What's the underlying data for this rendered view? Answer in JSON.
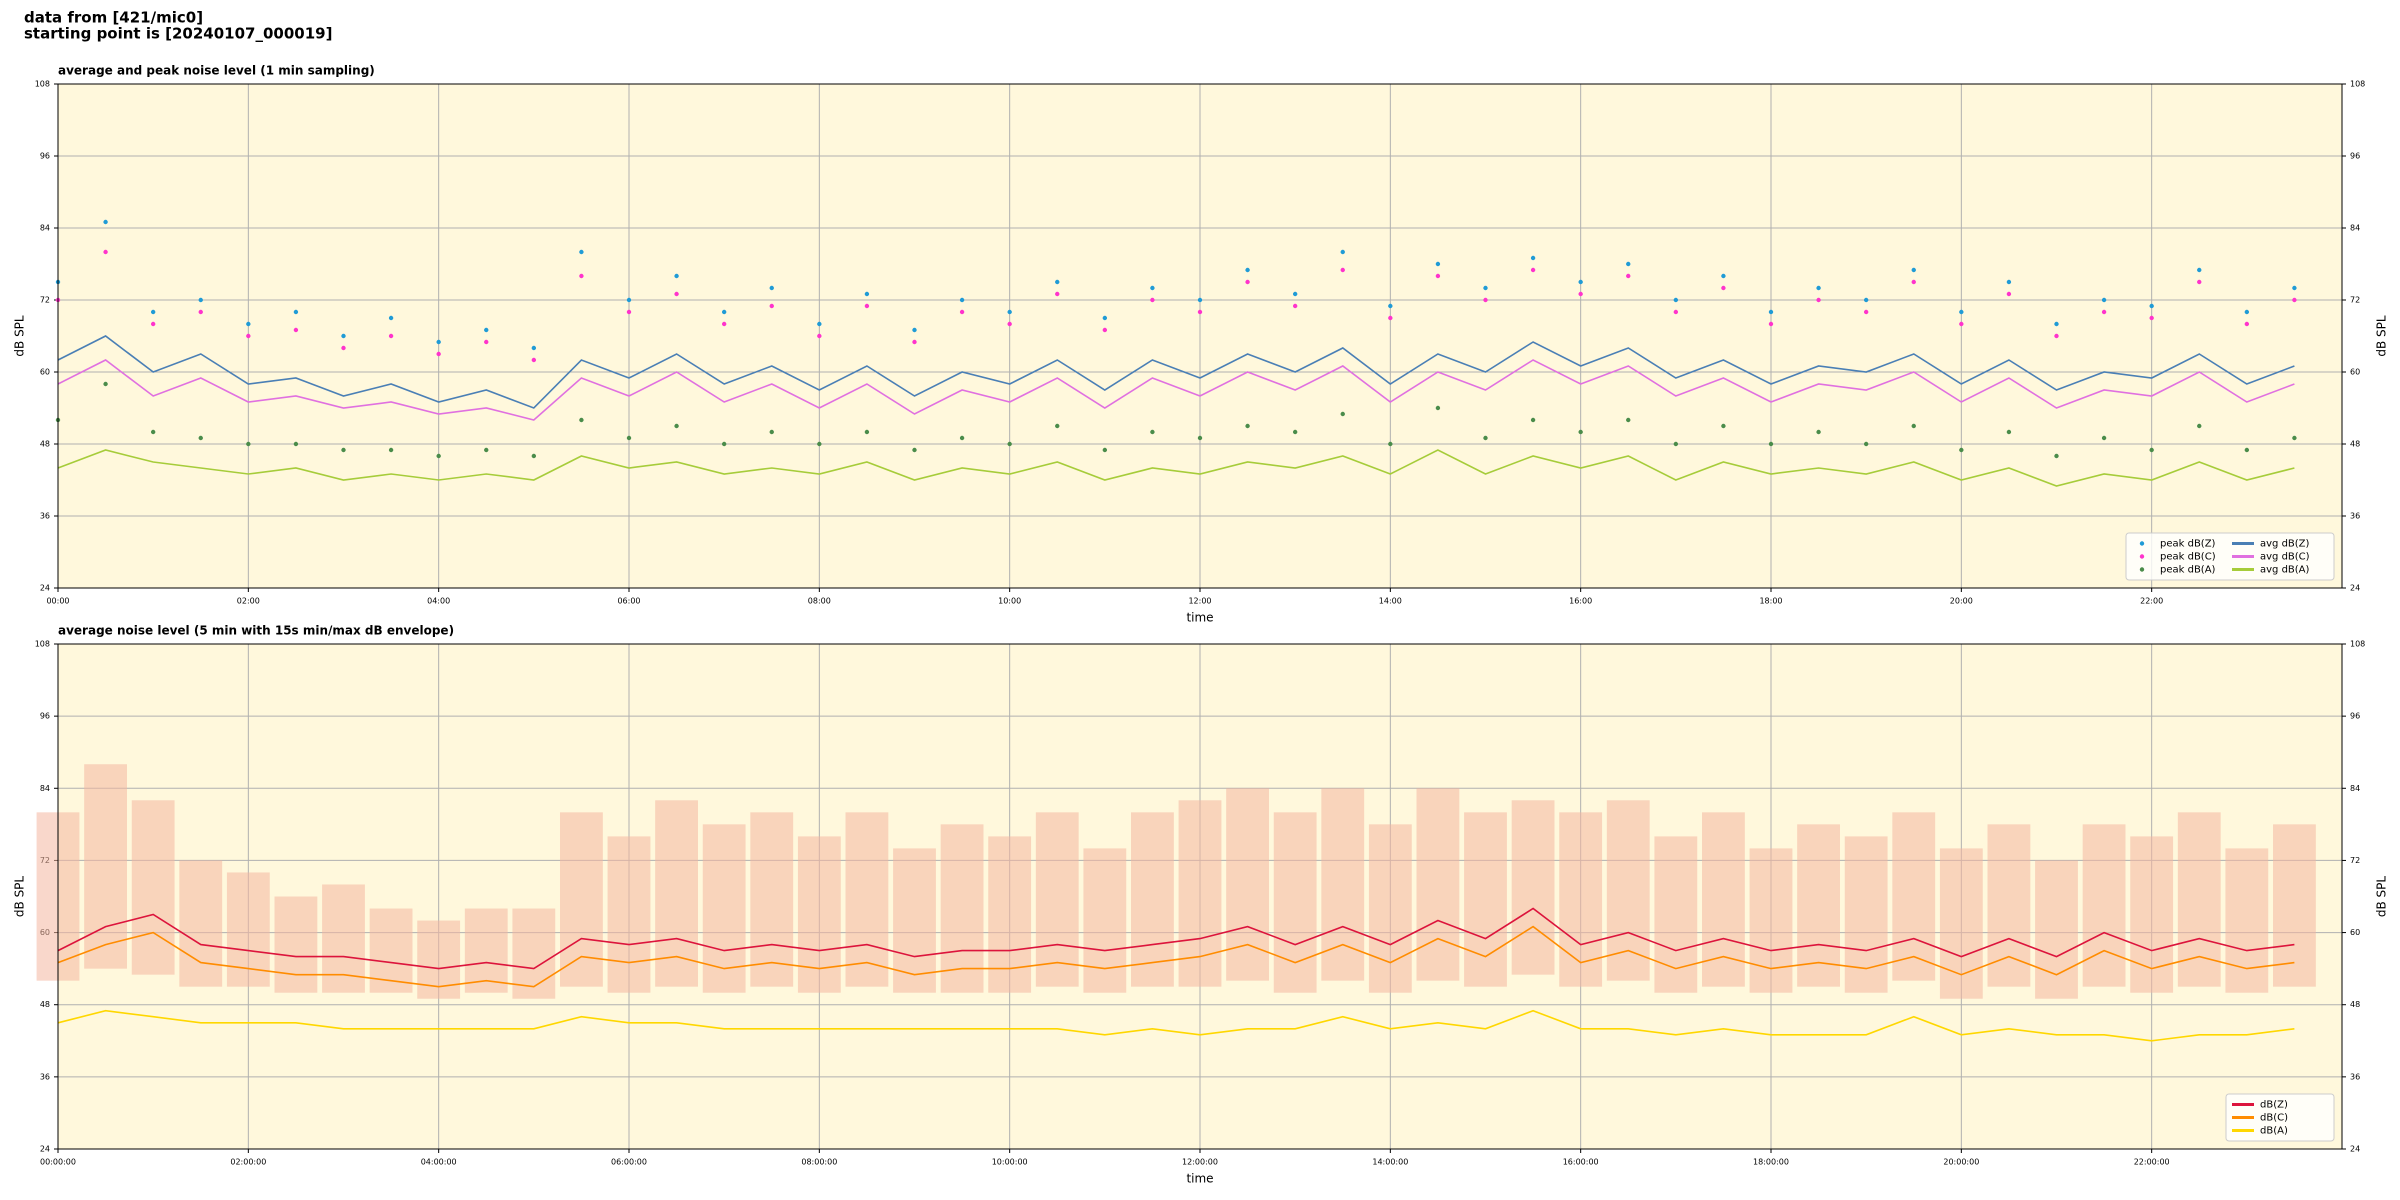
{
  "header": {
    "lines": [
      "data from [421/mic0]",
      "starting point is [20240107_000019]"
    ]
  },
  "chart_data": [
    {
      "type": "line",
      "title": "average and peak noise level (1 min sampling)",
      "xlabel": "time",
      "ylabel": "dB SPL",
      "background": "#fff8dc",
      "grid": true,
      "legend": "lower right",
      "legend_columns": 2,
      "xlim": [
        0,
        24
      ],
      "xticks": [
        {
          "value": 0,
          "label": "00:00"
        },
        {
          "value": 2,
          "label": "02:00"
        },
        {
          "value": 4,
          "label": "04:00"
        },
        {
          "value": 6,
          "label": "06:00"
        },
        {
          "value": 8,
          "label": "08:00"
        },
        {
          "value": 10,
          "label": "10:00"
        },
        {
          "value": 12,
          "label": "12:00"
        },
        {
          "value": 14,
          "label": "14:00"
        },
        {
          "value": 16,
          "label": "16:00"
        },
        {
          "value": 18,
          "label": "18:00"
        },
        {
          "value": 20,
          "label": "20:00"
        },
        {
          "value": 22,
          "label": "22:00"
        }
      ],
      "ylim": [
        24,
        108
      ],
      "yticks": [
        24,
        36,
        48,
        60,
        72,
        84,
        96,
        108
      ],
      "x": [
        0,
        0.5,
        1,
        1.5,
        2,
        2.5,
        3,
        3.5,
        4,
        4.5,
        5,
        5.5,
        6,
        6.5,
        7,
        7.5,
        8,
        8.5,
        9,
        9.5,
        10,
        10.5,
        11,
        11.5,
        12,
        12.5,
        13,
        13.5,
        14,
        14.5,
        15,
        15.5,
        16,
        16.5,
        17,
        17.5,
        18,
        18.5,
        19,
        19.5,
        20,
        20.5,
        21,
        21.5,
        22,
        22.5,
        23,
        23.5
      ],
      "series": [
        {
          "name": "peak dB(Z)",
          "mode": "markers",
          "color": "#1f9bd6",
          "values": [
            75,
            85,
            70,
            72,
            68,
            70,
            66,
            69,
            65,
            67,
            64,
            80,
            72,
            76,
            70,
            74,
            68,
            73,
            67,
            72,
            70,
            75,
            69,
            74,
            72,
            77,
            73,
            80,
            71,
            78,
            74,
            79,
            75,
            78,
            72,
            76,
            70,
            74,
            72,
            77,
            70,
            75,
            68,
            72,
            71,
            77,
            70,
            74
          ]
        },
        {
          "name": "peak dB(C)",
          "mode": "markers",
          "color": "#ff33cc",
          "values": [
            72,
            80,
            68,
            70,
            66,
            67,
            64,
            66,
            63,
            65,
            62,
            76,
            70,
            73,
            68,
            71,
            66,
            71,
            65,
            70,
            68,
            73,
            67,
            72,
            70,
            75,
            71,
            77,
            69,
            76,
            72,
            77,
            73,
            76,
            70,
            74,
            68,
            72,
            70,
            75,
            68,
            73,
            66,
            70,
            69,
            75,
            68,
            72
          ]
        },
        {
          "name": "peak dB(A)",
          "mode": "markers",
          "color": "#4a8c4a",
          "values": [
            52,
            58,
            50,
            49,
            48,
            48,
            47,
            47,
            46,
            47,
            46,
            52,
            49,
            51,
            48,
            50,
            48,
            50,
            47,
            49,
            48,
            51,
            47,
            50,
            49,
            51,
            50,
            53,
            48,
            54,
            49,
            52,
            50,
            52,
            48,
            51,
            48,
            50,
            48,
            51,
            47,
            50,
            46,
            49,
            47,
            51,
            47,
            49
          ]
        },
        {
          "name": "avg dB(Z)",
          "mode": "lines",
          "color": "#4a7fb5",
          "values": [
            62,
            66,
            60,
            63,
            58,
            59,
            56,
            58,
            55,
            57,
            54,
            62,
            59,
            63,
            58,
            61,
            57,
            61,
            56,
            60,
            58,
            62,
            57,
            62,
            59,
            63,
            60,
            64,
            58,
            63,
            60,
            65,
            61,
            64,
            59,
            62,
            58,
            61,
            60,
            63,
            58,
            62,
            57,
            60,
            59,
            63,
            58,
            61
          ]
        },
        {
          "name": "avg dB(C)",
          "mode": "lines",
          "color": "#e070e0",
          "values": [
            58,
            62,
            56,
            59,
            55,
            56,
            54,
            55,
            53,
            54,
            52,
            59,
            56,
            60,
            55,
            58,
            54,
            58,
            53,
            57,
            55,
            59,
            54,
            59,
            56,
            60,
            57,
            61,
            55,
            60,
            57,
            62,
            58,
            61,
            56,
            59,
            55,
            58,
            57,
            60,
            55,
            59,
            54,
            57,
            56,
            60,
            55,
            58
          ]
        },
        {
          "name": "avg dB(A)",
          "mode": "lines",
          "color": "#a6cc3a",
          "values": [
            44,
            47,
            45,
            44,
            43,
            44,
            42,
            43,
            42,
            43,
            42,
            46,
            44,
            45,
            43,
            44,
            43,
            45,
            42,
            44,
            43,
            45,
            42,
            44,
            43,
            45,
            44,
            46,
            43,
            47,
            43,
            46,
            44,
            46,
            42,
            45,
            43,
            44,
            43,
            45,
            42,
            44,
            41,
            43,
            42,
            45,
            42,
            44
          ]
        }
      ]
    },
    {
      "type": "line",
      "title": "average noise level (5 min with 15s min/max dB envelope)",
      "xlabel": "time",
      "ylabel": "dB SPL",
      "background": "#fff8dc",
      "grid": true,
      "legend": "lower right",
      "legend_columns": 1,
      "xlim": [
        0,
        24
      ],
      "xticks": [
        {
          "value": 0,
          "label": "00:00:00"
        },
        {
          "value": 2,
          "label": "02:00:00"
        },
        {
          "value": 4,
          "label": "04:00:00"
        },
        {
          "value": 6,
          "label": "06:00:00"
        },
        {
          "value": 8,
          "label": "08:00:00"
        },
        {
          "value": 10,
          "label": "10:00:00"
        },
        {
          "value": 12,
          "label": "12:00:00"
        },
        {
          "value": 14,
          "label": "14:00:00"
        },
        {
          "value": 16,
          "label": "16:00:00"
        },
        {
          "value": 18,
          "label": "18:00:00"
        },
        {
          "value": 20,
          "label": "20:00:00"
        },
        {
          "value": 22,
          "label": "22:00:00"
        }
      ],
      "ylim": [
        24,
        108
      ],
      "yticks": [
        24,
        36,
        48,
        60,
        72,
        84,
        96,
        108
      ],
      "x": [
        0,
        0.5,
        1,
        1.5,
        2,
        2.5,
        3,
        3.5,
        4,
        4.5,
        5,
        5.5,
        6,
        6.5,
        7,
        7.5,
        8,
        8.5,
        9,
        9.5,
        10,
        10.5,
        11,
        11.5,
        12,
        12.5,
        13,
        13.5,
        14,
        14.5,
        15,
        15.5,
        16,
        16.5,
        17,
        17.5,
        18,
        18.5,
        19,
        19.5,
        20,
        20.5,
        21,
        21.5,
        22,
        22.5,
        23,
        23.5
      ],
      "envelope": {
        "color": "#f4b6a0",
        "high": [
          80,
          88,
          82,
          72,
          70,
          66,
          68,
          64,
          62,
          64,
          64,
          80,
          76,
          82,
          78,
          80,
          76,
          80,
          74,
          78,
          76,
          80,
          74,
          80,
          82,
          84,
          80,
          84,
          78,
          84,
          80,
          82,
          80,
          82,
          76,
          80,
          74,
          78,
          76,
          80,
          74,
          78,
          72,
          78,
          76,
          80,
          74,
          78
        ],
        "low": [
          52,
          54,
          53,
          51,
          51,
          50,
          50,
          50,
          49,
          50,
          49,
          51,
          50,
          51,
          50,
          51,
          50,
          51,
          50,
          50,
          50,
          51,
          50,
          51,
          51,
          52,
          50,
          52,
          50,
          52,
          51,
          53,
          51,
          52,
          50,
          51,
          50,
          51,
          50,
          52,
          49,
          51,
          49,
          51,
          50,
          51,
          50,
          51
        ]
      },
      "series": [
        {
          "name": "dB(Z)",
          "mode": "lines",
          "color": "#dc143c",
          "values": [
            57,
            61,
            63,
            58,
            57,
            56,
            56,
            55,
            54,
            55,
            54,
            59,
            58,
            59,
            57,
            58,
            57,
            58,
            56,
            57,
            57,
            58,
            57,
            58,
            59,
            61,
            58,
            61,
            58,
            62,
            59,
            64,
            58,
            60,
            57,
            59,
            57,
            58,
            57,
            59,
            56,
            59,
            56,
            60,
            57,
            59,
            57,
            58
          ]
        },
        {
          "name": "dB(C)",
          "mode": "lines",
          "color": "#ff8c00",
          "values": [
            55,
            58,
            60,
            55,
            54,
            53,
            53,
            52,
            51,
            52,
            51,
            56,
            55,
            56,
            54,
            55,
            54,
            55,
            53,
            54,
            54,
            55,
            54,
            55,
            56,
            58,
            55,
            58,
            55,
            59,
            56,
            61,
            55,
            57,
            54,
            56,
            54,
            55,
            54,
            56,
            53,
            56,
            53,
            57,
            54,
            56,
            54,
            55
          ]
        },
        {
          "name": "dB(A)",
          "mode": "lines",
          "color": "#ffd700",
          "values": [
            45,
            47,
            46,
            45,
            45,
            45,
            44,
            44,
            44,
            44,
            44,
            46,
            45,
            45,
            44,
            44,
            44,
            44,
            44,
            44,
            44,
            44,
            43,
            44,
            43,
            44,
            44,
            46,
            44,
            45,
            44,
            47,
            44,
            44,
            43,
            44,
            43,
            43,
            43,
            46,
            43,
            44,
            43,
            43,
            42,
            43,
            43,
            44
          ]
        }
      ]
    }
  ]
}
